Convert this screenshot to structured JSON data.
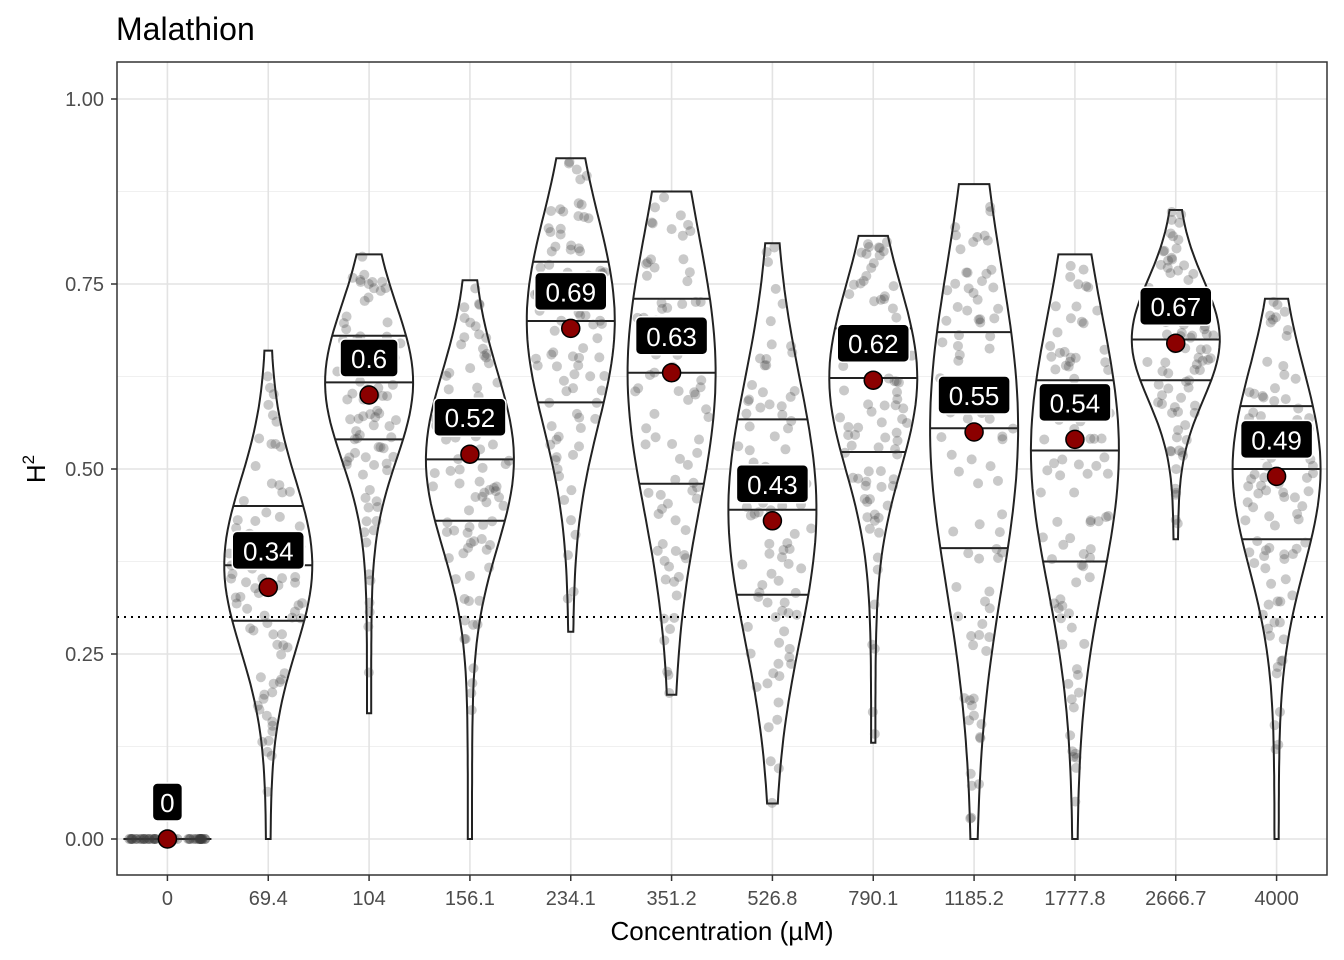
{
  "chart_data": {
    "type": "violin",
    "title": "Malathion",
    "xlabel": "Concentration (µM)",
    "ylabel": "H",
    "ylabel_superscript": "2",
    "ylim": [
      -0.05,
      1.05
    ],
    "yticks": [
      0,
      0.25,
      0.5,
      0.75,
      1.0
    ],
    "ytick_labels": [
      "0.00",
      "0.25",
      "0.50",
      "0.75",
      "1.00"
    ],
    "threshold": 0.3,
    "categories": [
      "0",
      "69.4",
      "104",
      "156.1",
      "234.1",
      "351.2",
      "526.8",
      "790.1",
      "1185.2",
      "1777.8",
      "2666.7",
      "4000"
    ],
    "medians": [
      0,
      0.34,
      0.6,
      0.52,
      0.69,
      0.63,
      0.43,
      0.62,
      0.55,
      0.54,
      0.67,
      0.49
    ],
    "median_labels": [
      "0",
      "0.34",
      "0.6",
      "0.52",
      "0.69",
      "0.63",
      "0.43",
      "0.62",
      "0.55",
      "0.54",
      "0.67",
      "0.49"
    ],
    "quartiles": [
      [
        0,
        0,
        0
      ],
      [
        0.295,
        0.37,
        0.45
      ],
      [
        0.54,
        0.617,
        0.68
      ],
      [
        0.43,
        0.513,
        0.59
      ],
      [
        0.59,
        0.7,
        0.78
      ],
      [
        0.48,
        0.63,
        0.73
      ],
      [
        0.33,
        0.445,
        0.567
      ],
      [
        0.523,
        0.623,
        0.69
      ],
      [
        0.393,
        0.555,
        0.685
      ],
      [
        0.375,
        0.525,
        0.62
      ],
      [
        0.62,
        0.675,
        0.73
      ],
      [
        0.405,
        0.5,
        0.585
      ]
    ],
    "ranges": [
      [
        0,
        0.001
      ],
      [
        0,
        0.66
      ],
      [
        0.17,
        0.79
      ],
      [
        0,
        0.755
      ],
      [
        0.28,
        0.92
      ],
      [
        0.195,
        0.875
      ],
      [
        0.048,
        0.805
      ],
      [
        0.13,
        0.815
      ],
      [
        0,
        0.885
      ],
      [
        0,
        0.79
      ],
      [
        0.405,
        0.85
      ],
      [
        0,
        0.73
      ]
    ],
    "point_color": "#8b0000",
    "grid": true
  }
}
